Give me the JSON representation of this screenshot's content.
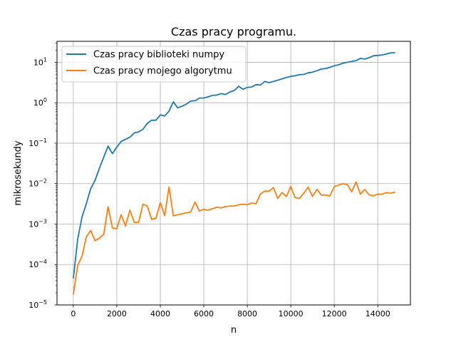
{
  "chart_data": {
    "type": "line",
    "title": "Czas pracy programu.",
    "xlabel": "n",
    "ylabel": "mikrosekundy",
    "xlim": [
      -750,
      15500
    ],
    "ylim": [
      1e-05,
      33
    ],
    "yscale": "log",
    "grid": true,
    "legend_position": "top-left",
    "x_ticks": [
      0,
      2000,
      4000,
      6000,
      8000,
      10000,
      12000,
      14000
    ],
    "x_tick_labels": [
      "0",
      "2000",
      "4000",
      "6000",
      "8000",
      "10000",
      "12000",
      "14000"
    ],
    "y_ticks": [
      1e-05,
      0.0001,
      0.001,
      0.01,
      0.1,
      1,
      10
    ],
    "y_tick_labels": [
      [
        "10",
        "−5"
      ],
      [
        "10",
        "−4"
      ],
      [
        "10",
        "−3"
      ],
      [
        "10",
        "−2"
      ],
      [
        "10",
        "−1"
      ],
      [
        "10",
        "0"
      ],
      [
        "10",
        "1"
      ]
    ],
    "x": [
      0,
      200,
      400,
      600,
      800,
      1000,
      1200,
      1400,
      1600,
      1800,
      2000,
      2200,
      2400,
      2600,
      2800,
      3000,
      3200,
      3400,
      3600,
      3800,
      4000,
      4200,
      4400,
      4600,
      4800,
      5000,
      5200,
      5400,
      5600,
      5800,
      6000,
      6200,
      6400,
      6600,
      6800,
      7000,
      7200,
      7400,
      7600,
      7800,
      8000,
      8200,
      8400,
      8600,
      8800,
      9000,
      9200,
      9400,
      9600,
      9800,
      10000,
      10200,
      10400,
      10600,
      10800,
      11000,
      11200,
      11400,
      11600,
      11800,
      12000,
      12200,
      12400,
      12600,
      12800,
      13000,
      13200,
      13400,
      13600,
      13800,
      14000,
      14200,
      14400,
      14600,
      14800
    ],
    "series": [
      {
        "name": "Czas pracy biblioteki numpy",
        "color": "#1f77b4",
        "values": [
          4.5e-05,
          0.00042,
          0.0015,
          0.0032,
          0.0075,
          0.012,
          0.024,
          0.045,
          0.085,
          0.055,
          0.08,
          0.11,
          0.125,
          0.14,
          0.18,
          0.19,
          0.22,
          0.31,
          0.37,
          0.37,
          0.5,
          0.47,
          0.62,
          1.05,
          0.75,
          0.82,
          0.92,
          1.1,
          1.12,
          1.3,
          1.31,
          1.4,
          1.52,
          1.55,
          1.68,
          1.6,
          1.85,
          2.0,
          2.55,
          2.15,
          2.4,
          2.45,
          2.8,
          2.75,
          3.35,
          3.15,
          3.35,
          3.6,
          3.9,
          4.2,
          4.5,
          4.65,
          4.95,
          5.0,
          5.5,
          5.7,
          6.2,
          6.8,
          7.0,
          7.5,
          8.2,
          8.7,
          9.5,
          10.0,
          10.5,
          11.0,
          12.5,
          12.0,
          13.0,
          14.5,
          14.8,
          15.2,
          16.0,
          17.2,
          17.3
        ]
      },
      {
        "name": "Czas pracy mojego algorytmu",
        "color": "#ff7f0e",
        "values": [
          1.8e-05,
          9.5e-05,
          0.00016,
          0.00049,
          0.00069,
          0.00039,
          0.00045,
          0.00056,
          0.0027,
          0.0008,
          0.00077,
          0.0017,
          0.0009,
          0.0022,
          0.0011,
          0.0011,
          0.0031,
          0.0028,
          0.0013,
          0.0014,
          0.0034,
          0.0016,
          0.0082,
          0.0016,
          0.0017,
          0.0018,
          0.0019,
          0.002,
          0.0035,
          0.0021,
          0.0023,
          0.0022,
          0.0024,
          0.0026,
          0.0025,
          0.0027,
          0.0028,
          0.0028,
          0.003,
          0.0031,
          0.003,
          0.0033,
          0.0032,
          0.0055,
          0.0065,
          0.0065,
          0.008,
          0.0043,
          0.006,
          0.0048,
          0.0085,
          0.0045,
          0.0043,
          0.0058,
          0.0082,
          0.0048,
          0.0072,
          0.0052,
          0.0052,
          0.005,
          0.0085,
          0.0092,
          0.01,
          0.0095,
          0.0063,
          0.011,
          0.0055,
          0.0072,
          0.0053,
          0.005,
          0.0055,
          0.0055,
          0.006,
          0.0058,
          0.0062
        ]
      }
    ]
  }
}
